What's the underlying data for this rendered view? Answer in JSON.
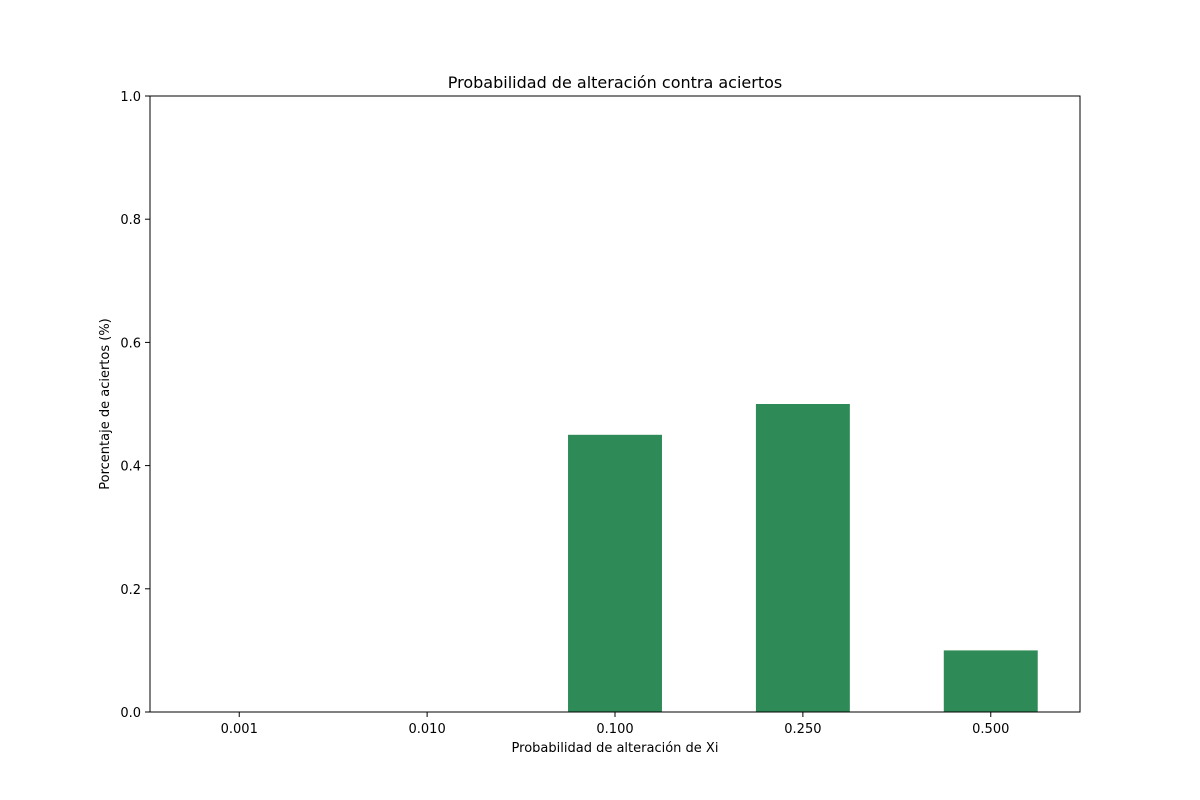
{
  "chart_data": {
    "type": "bar",
    "title": "Probabilidad de alteración contra aciertos",
    "xlabel": "Probabilidad de alteración de Xi",
    "ylabel": "Porcentaje de aciertos (%)",
    "categories": [
      "0.001",
      "0.010",
      "0.100",
      "0.250",
      "0.500"
    ],
    "values": [
      0.0,
      0.0,
      0.45,
      0.5,
      0.1
    ],
    "ylim": [
      0,
      1.0
    ],
    "yticks": [
      "0.0",
      "0.2",
      "0.4",
      "0.6",
      "0.8",
      "1.0"
    ],
    "bar_color": "#2e8b57",
    "grid": false,
    "legend": "none"
  }
}
